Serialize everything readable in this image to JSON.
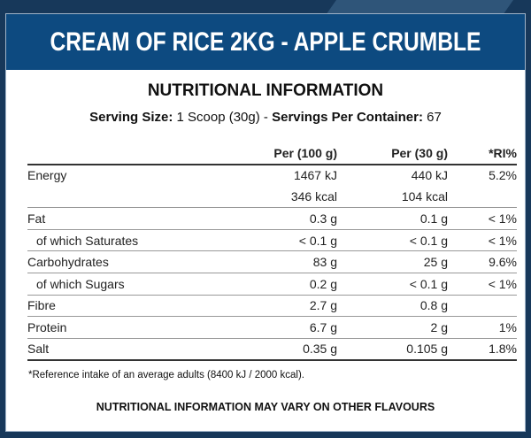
{
  "product_title": "CREAM OF RICE 2KG - APPLE CRUMBLE",
  "section_title": "NUTRITIONAL INFORMATION",
  "serving": {
    "size_label": "Serving Size:",
    "size_value": "1 Scoop (30g)",
    "separator": "-",
    "servings_label": "Servings Per Container:",
    "servings_value": "67"
  },
  "columns": [
    "",
    "Per (100 g)",
    "Per (30 g)",
    "*RI%"
  ],
  "rows": [
    {
      "name": "Energy",
      "per100": "1467 kJ",
      "per30": "440 kJ",
      "ri": "5.2%"
    },
    {
      "name": "",
      "per100": "346 kcal",
      "per30": "104 kcal",
      "ri": ""
    },
    {
      "name": "Fat",
      "per100": "0.3 g",
      "per30": "0.1 g",
      "ri": "< 1%"
    },
    {
      "name": "of which Saturates",
      "per100": "< 0.1 g",
      "per30": "< 0.1 g",
      "ri": "< 1%"
    },
    {
      "name": "Carbohydrates",
      "per100": "83 g",
      "per30": "25 g",
      "ri": "9.6%"
    },
    {
      "name": "of which Sugars",
      "per100": "0.2 g",
      "per30": "< 0.1 g",
      "ri": "< 1%"
    },
    {
      "name": "Fibre",
      "per100": "2.7 g",
      "per30": "0.8 g",
      "ri": ""
    },
    {
      "name": "Protein",
      "per100": "6.7 g",
      "per30": "2 g",
      "ri": "1%"
    },
    {
      "name": "Salt",
      "per100": "0.35 g",
      "per30": "0.105 g",
      "ri": "1.8%"
    }
  ],
  "footnote": "*Reference intake of an average adults (8400 kJ / 2000 kcal).",
  "note": "NUTRITIONAL INFORMATION MAY VARY ON OTHER FLAVOURS",
  "colors": {
    "header": "#0d4a80",
    "background": "#17385a"
  }
}
